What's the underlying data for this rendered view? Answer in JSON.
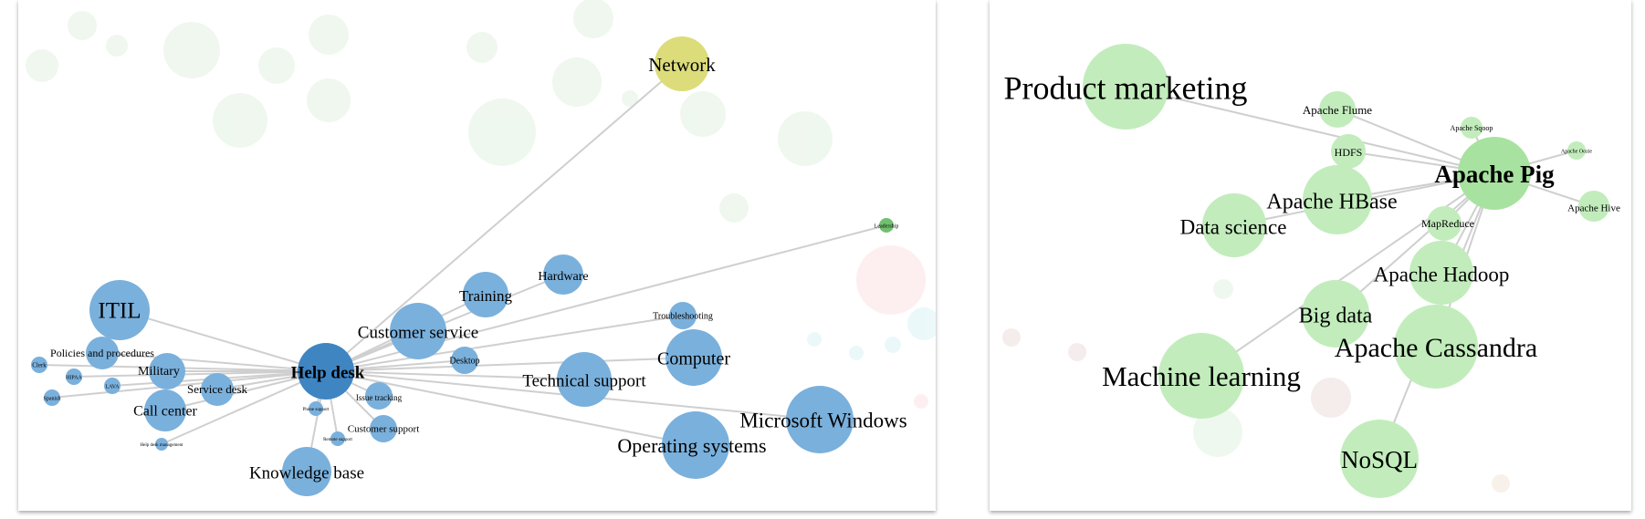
{
  "help_desk_graph": {
    "center": {
      "label": "Help desk",
      "color": "#3f85c2"
    },
    "nodes": [
      {
        "label": "Network",
        "color": "#dcdc7a"
      },
      {
        "label": "Leadership",
        "color": "#70c070"
      },
      {
        "label": "ITIL",
        "color": "#7ab0dc"
      },
      {
        "label": "Policies and procedures",
        "color": "#7ab0dc"
      },
      {
        "label": "Clerk",
        "color": "#7ab0dc"
      },
      {
        "label": "HIPAA",
        "color": "#7ab0dc"
      },
      {
        "label": "LAVA",
        "color": "#7ab0dc"
      },
      {
        "label": "Military",
        "color": "#7ab0dc"
      },
      {
        "label": "Spanish",
        "color": "#7ab0dc"
      },
      {
        "label": "Service desk",
        "color": "#7ab0dc"
      },
      {
        "label": "Call center",
        "color": "#7ab0dc"
      },
      {
        "label": "Help desk management",
        "color": "#7ab0dc"
      },
      {
        "label": "Phone support",
        "color": "#7ab0dc"
      },
      {
        "label": "Remote support",
        "color": "#7ab0dc"
      },
      {
        "label": "Knowledge base",
        "color": "#7ab0dc"
      },
      {
        "label": "Customer service",
        "color": "#7ab0dc"
      },
      {
        "label": "Training",
        "color": "#7ab0dc"
      },
      {
        "label": "Hardware",
        "color": "#7ab0dc"
      },
      {
        "label": "Desktop",
        "color": "#7ab0dc"
      },
      {
        "label": "Issue tracking",
        "color": "#7ab0dc"
      },
      {
        "label": "Customer support",
        "color": "#7ab0dc"
      },
      {
        "label": "Troubleshooting",
        "color": "#7ab0dc"
      },
      {
        "label": "Computer",
        "color": "#7ab0dc"
      },
      {
        "label": "Technical support",
        "color": "#7ab0dc"
      },
      {
        "label": "Operating systems",
        "color": "#7ab0dc"
      },
      {
        "label": "Microsoft Windows",
        "color": "#7ab0dc"
      }
    ]
  },
  "apache_pig_graph": {
    "center": {
      "label": "Apache Pig",
      "color": "#a8e2a0"
    },
    "nodes": [
      {
        "label": "Product marketing",
        "color": "#c2ecbc"
      },
      {
        "label": "Apache Flume",
        "color": "#c2ecbc"
      },
      {
        "label": "Apache Sqoop",
        "color": "#c2ecbc"
      },
      {
        "label": "Apache Oozie",
        "color": "#c2ecbc"
      },
      {
        "label": "HDFS",
        "color": "#c2ecbc"
      },
      {
        "label": "Apache Hive",
        "color": "#c2ecbc"
      },
      {
        "label": "Apache HBase",
        "color": "#c2ecbc"
      },
      {
        "label": "MapReduce",
        "color": "#c2ecbc"
      },
      {
        "label": "Data science",
        "color": "#c2ecbc"
      },
      {
        "label": "Apache Hadoop",
        "color": "#c2ecbc"
      },
      {
        "label": "Big data",
        "color": "#c2ecbc"
      },
      {
        "label": "Apache Cassandra",
        "color": "#c2ecbc"
      },
      {
        "label": "Machine learning",
        "color": "#c2ecbc"
      },
      {
        "label": "NoSQL",
        "color": "#c2ecbc"
      }
    ]
  }
}
